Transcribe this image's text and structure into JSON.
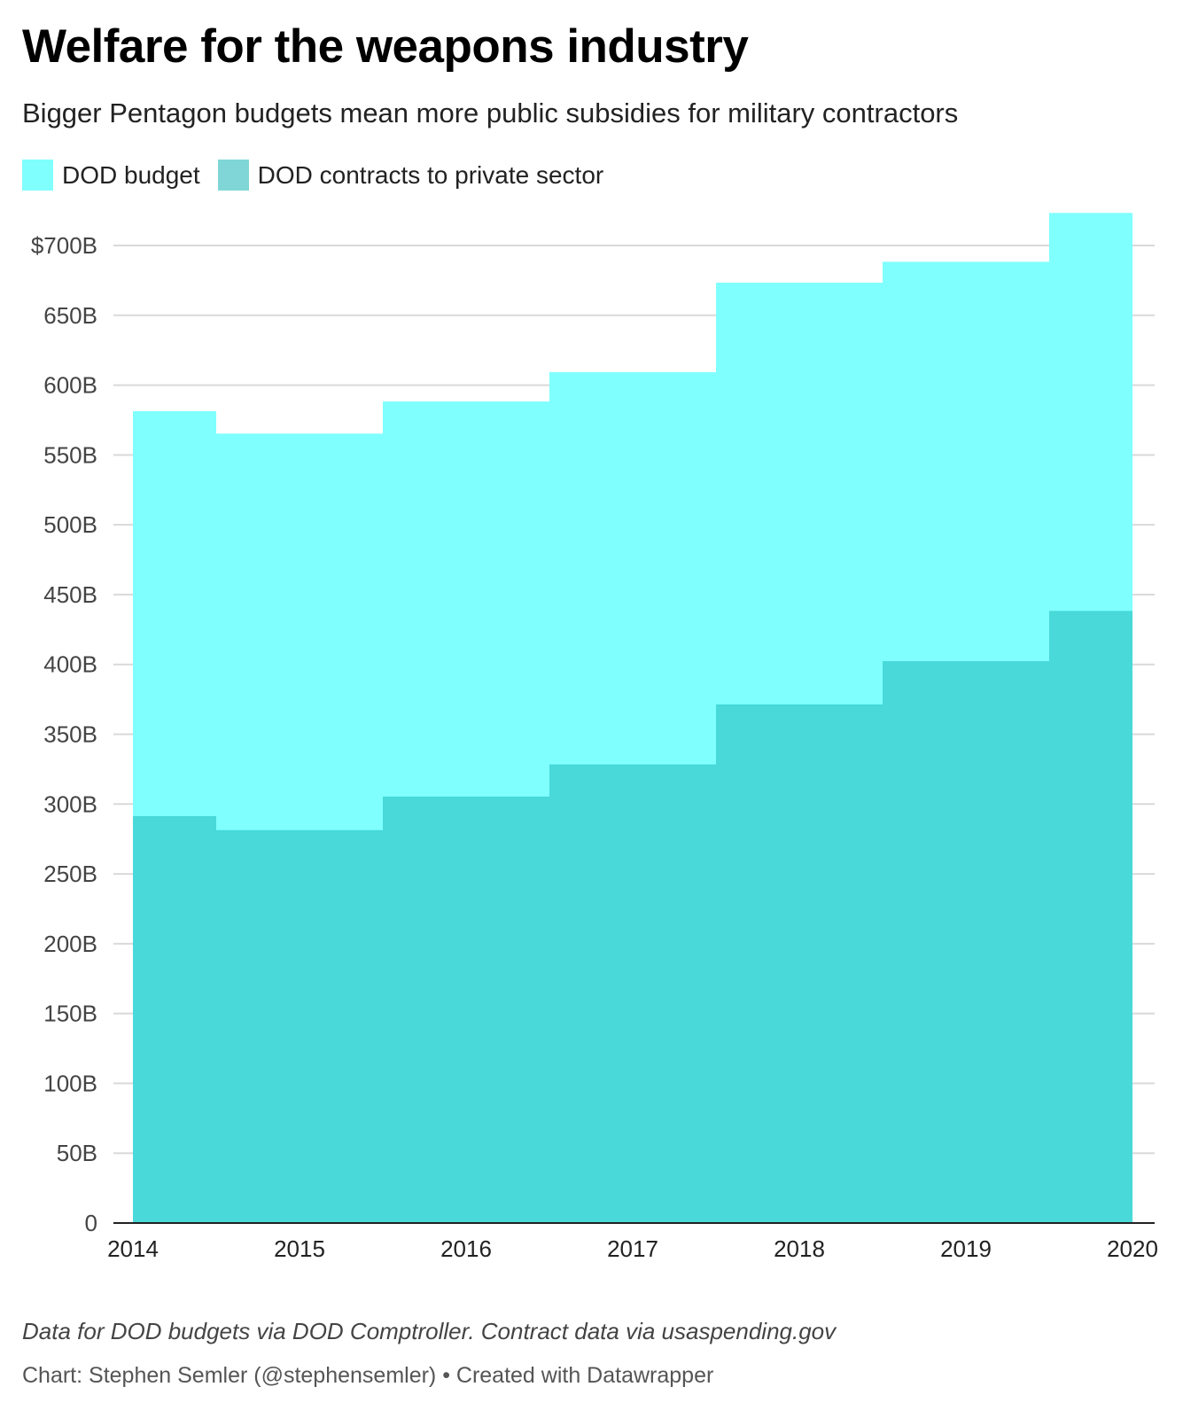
{
  "header": {
    "title": "Welfare for the weapons industry",
    "subtitle": "Bigger Pentagon budgets mean more public subsidies for military contractors"
  },
  "legend": [
    {
      "label": "DOD budget",
      "color": "#80ffff"
    },
    {
      "label": "DOD contracts to private sector",
      "color": "#80d6d6"
    }
  ],
  "footer": {
    "notes": "Data for DOD budgets via DOD Comptroller. Contract data via usaspending.gov",
    "byline": "Chart: Stephen Semler (@stephensemler) • Created with Datawrapper"
  },
  "chart_data": {
    "type": "area",
    "step": true,
    "x": [
      2014,
      2015,
      2016,
      2017,
      2018,
      2019,
      2020
    ],
    "x_tick_labels": [
      "2014",
      "2015",
      "2016",
      "2017",
      "2018",
      "2019",
      "2020"
    ],
    "series": [
      {
        "name": "DOD budget",
        "color": "#80ffff",
        "values": [
          581,
          565,
          588,
          609,
          673,
          688,
          723
        ]
      },
      {
        "name": "DOD contracts to private sector",
        "color": "#42d5d5",
        "values": [
          291,
          281,
          305,
          328,
          371,
          402,
          438
        ]
      }
    ],
    "y_ticks": [
      0,
      50,
      100,
      150,
      200,
      250,
      300,
      350,
      400,
      450,
      500,
      550,
      600,
      650,
      700
    ],
    "y_tick_labels": [
      "0",
      "50B",
      "100B",
      "150B",
      "200B",
      "250B",
      "300B",
      "350B",
      "400B",
      "450B",
      "500B",
      "550B",
      "600B",
      "650B",
      "$700B"
    ],
    "ylim": [
      0,
      723
    ],
    "xlabel": "",
    "ylabel": "",
    "grid": true,
    "legend_position": "top-left"
  }
}
